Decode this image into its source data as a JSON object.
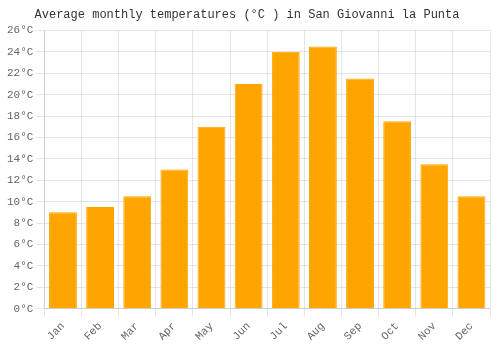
{
  "chart_data": {
    "type": "bar",
    "title": "Average monthly temperatures (°C ) in San Giovanni la Punta",
    "categories": [
      "Jan",
      "Feb",
      "Mar",
      "Apr",
      "May",
      "Jun",
      "Jul",
      "Aug",
      "Sep",
      "Oct",
      "Nov",
      "Dec"
    ],
    "values": [
      9.0,
      9.5,
      10.5,
      13.0,
      17.0,
      21.0,
      24.0,
      24.5,
      21.5,
      17.5,
      13.5,
      10.5
    ],
    "color": "#FFA500",
    "ylim": [
      0,
      26
    ],
    "yticks": [
      {
        "value": 0,
        "label": "0°C"
      },
      {
        "value": 2,
        "label": "2°C"
      },
      {
        "value": 4,
        "label": "4°C"
      },
      {
        "value": 6,
        "label": "6°C"
      },
      {
        "value": 8,
        "label": "8°C"
      },
      {
        "value": 10,
        "label": "10°C"
      },
      {
        "value": 12,
        "label": "12°C"
      },
      {
        "value": 14,
        "label": "14°C"
      },
      {
        "value": 16,
        "label": "16°C"
      },
      {
        "value": 18,
        "label": "18°C"
      },
      {
        "value": 20,
        "label": "20°C"
      },
      {
        "value": 22,
        "label": "22°C"
      },
      {
        "value": 24,
        "label": "24°C"
      },
      {
        "value": 26,
        "label": "26°C"
      }
    ],
    "grid": true
  }
}
